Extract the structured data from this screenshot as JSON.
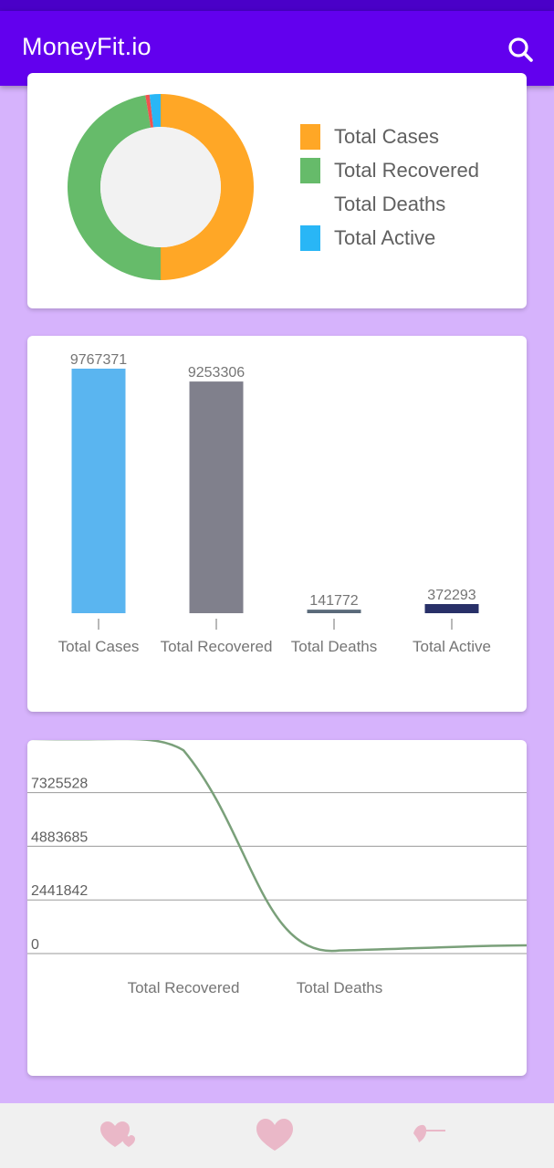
{
  "app": {
    "title": "MoneyFit.io"
  },
  "icons": {
    "search": "search-icon",
    "nav": [
      "hearts-icon",
      "heart-icon",
      "heart-arrow-icon"
    ]
  },
  "colors": {
    "app_bar": "#6200ee",
    "background": "#d6b3fc",
    "total_cases": "#ffa726",
    "total_recovered": "#66bb6a",
    "total_deaths": "#ef5350",
    "total_active": "#29b6f6"
  },
  "pie_card": {
    "legend": [
      {
        "label": "Total Cases",
        "color": "#ffa726"
      },
      {
        "label": "Total Recovered",
        "color": "#66bb6a"
      },
      {
        "label": "Total Deaths",
        "color": ""
      },
      {
        "label": "Total Active",
        "color": "#29b6f6"
      }
    ]
  },
  "chart_data": [
    {
      "type": "pie",
      "labels": [
        "Total Cases",
        "Total Recovered",
        "Total Deaths",
        "Total Active"
      ],
      "values": [
        9767371,
        9253306,
        141772,
        372293
      ],
      "colors": [
        "#ffa726",
        "#66bb6a",
        "#ef5350",
        "#29b6f6"
      ],
      "donut": true
    },
    {
      "type": "bar",
      "categories": [
        "Total Cases",
        "Total Recovered",
        "Total Deaths",
        "Total Active"
      ],
      "values": [
        9767371,
        9253306,
        141772,
        372293
      ],
      "value_labels": [
        "9767371",
        "9253306",
        "141772",
        "372293"
      ],
      "colors": [
        "#5ab5f0",
        "#80808c",
        "#5a6a7a",
        "#283068"
      ],
      "ylim": [
        0,
        9767371
      ]
    },
    {
      "type": "line",
      "x": [
        "",
        "Total Recovered",
        "Total Deaths",
        ""
      ],
      "series": [
        {
          "values": [
            9767371,
            9253306,
            141772,
            372293
          ]
        }
      ],
      "y_ticks": [
        0,
        2441842,
        4883685,
        7325528
      ],
      "y_tick_labels": [
        "0",
        "2441842",
        "4883685",
        "7325528"
      ],
      "x_tick_labels": [
        "Total Recovered",
        "Total Deaths"
      ],
      "ylim": [
        0,
        9767371
      ],
      "grid": true,
      "color": "#7aa07a"
    }
  ]
}
